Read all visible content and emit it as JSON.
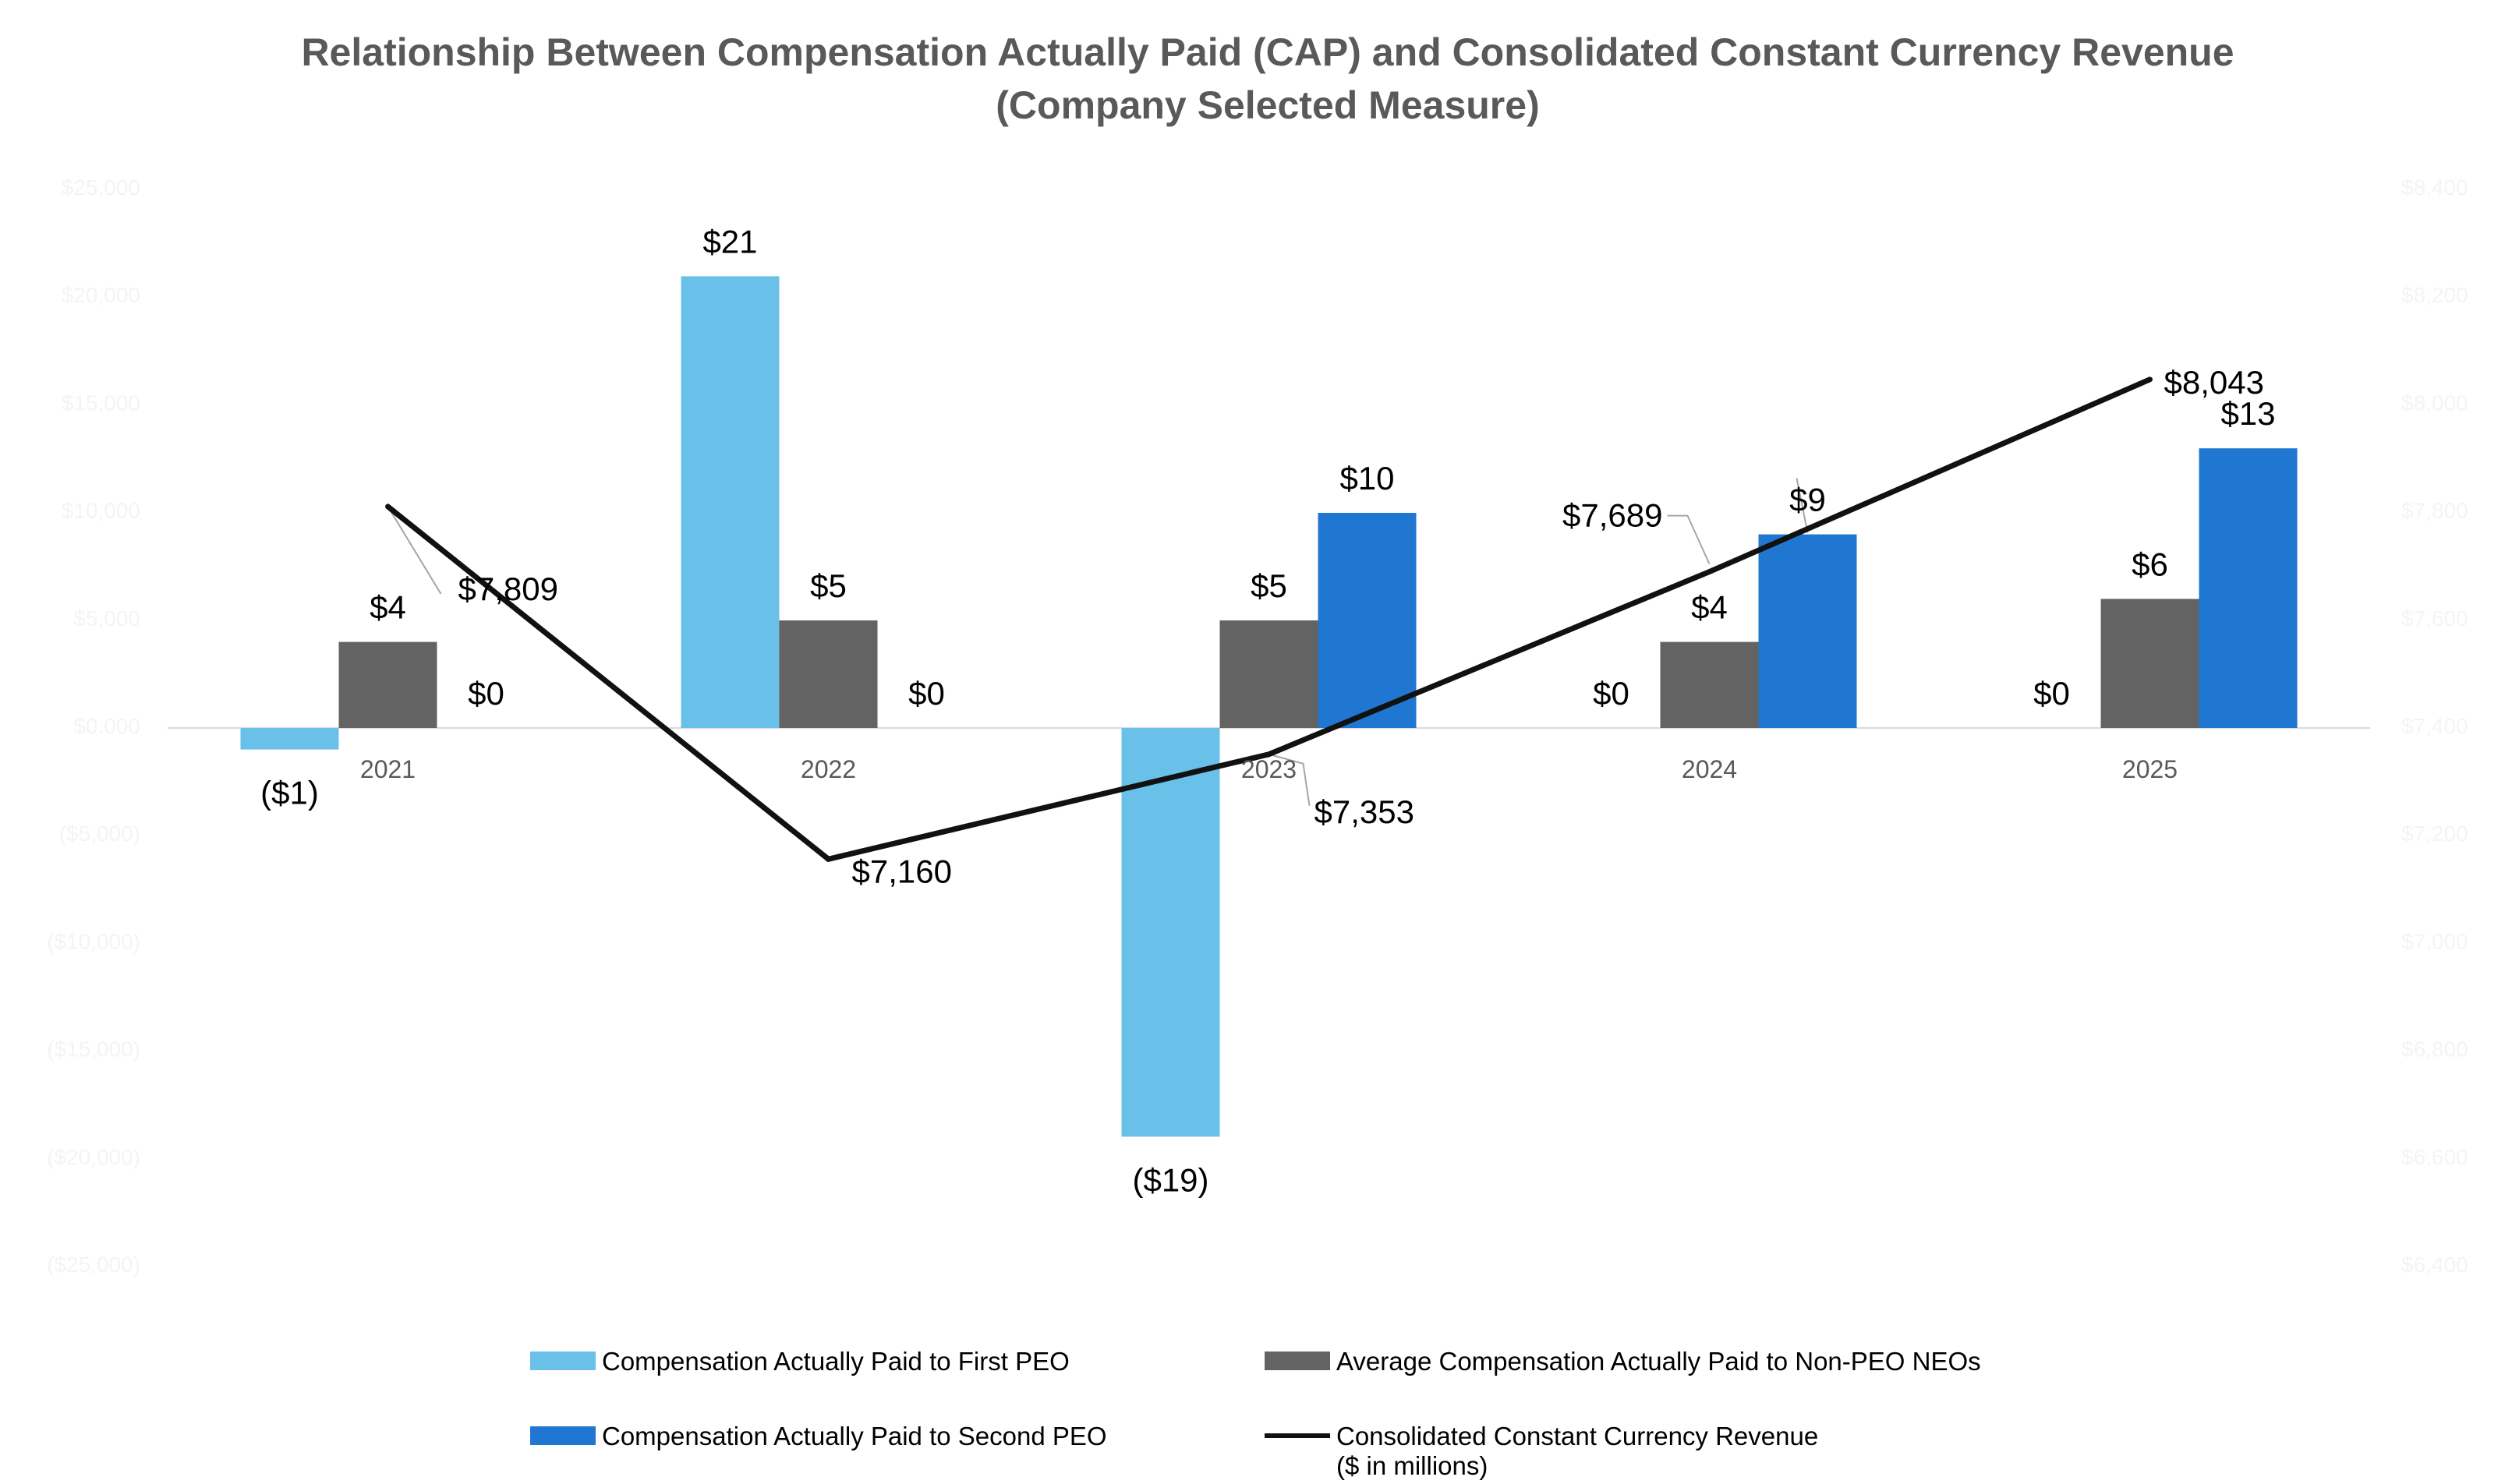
{
  "chart_data": {
    "type": "bar",
    "title": "Relationship Between Compensation Actually Paid (CAP) and Consolidated Constant Currency Revenue",
    "subtitle": "(Company Selected Measure)",
    "categories": [
      "2021",
      "2022",
      "2023",
      "2024",
      "2025"
    ],
    "ylim": [
      -25,
      25
    ],
    "y2lim": [
      6400,
      8400
    ],
    "series": [
      {
        "name": "Compensation Actually Paid to First PEO",
        "kind": "bar",
        "color": "#69c0e8",
        "values": [
          -1,
          21,
          -19,
          0,
          0
        ],
        "labels": [
          "($1)",
          "$21",
          "($19)",
          "$0",
          "$0"
        ]
      },
      {
        "name": "Average Compensation Actually Paid to Non-PEO NEOs",
        "kind": "bar",
        "color": "#636363",
        "values": [
          4,
          5,
          5,
          4,
          6
        ],
        "labels": [
          "$4",
          "$5",
          "$5",
          "$4",
          "$6"
        ]
      },
      {
        "name": "Compensation Actually Paid to Second PEO",
        "kind": "bar",
        "color": "#1f77d1",
        "values": [
          0,
          0,
          10,
          9,
          13
        ],
        "labels": [
          "$0",
          "$0",
          "$10",
          "$9",
          "$13"
        ]
      },
      {
        "name": "Consolidated Constant Currency Revenue",
        "name_line2": "($ in millions)",
        "kind": "line",
        "axis": "secondary",
        "color": "#111111",
        "values": [
          7809,
          7160,
          7353,
          7689,
          8043
        ],
        "labels": [
          "$7,809",
          "$7,160",
          "$7,353",
          "$7,689",
          "$8,043"
        ]
      }
    ],
    "left_axis_ticks": [
      "$25,000",
      "$20,000",
      "$15,000",
      "$10,000",
      "$5,000",
      "$0.000",
      "($5,000)",
      "($10,000)",
      "($15,000)",
      "($20,000)",
      "($25,000)"
    ],
    "right_axis_ticks": [
      "$8,400",
      "$8,200",
      "$8,000",
      "$7,800",
      "$7,600",
      "$7,400",
      "$7,200",
      "$7,000",
      "$6,800",
      "$6,600",
      "$6,400"
    ]
  }
}
